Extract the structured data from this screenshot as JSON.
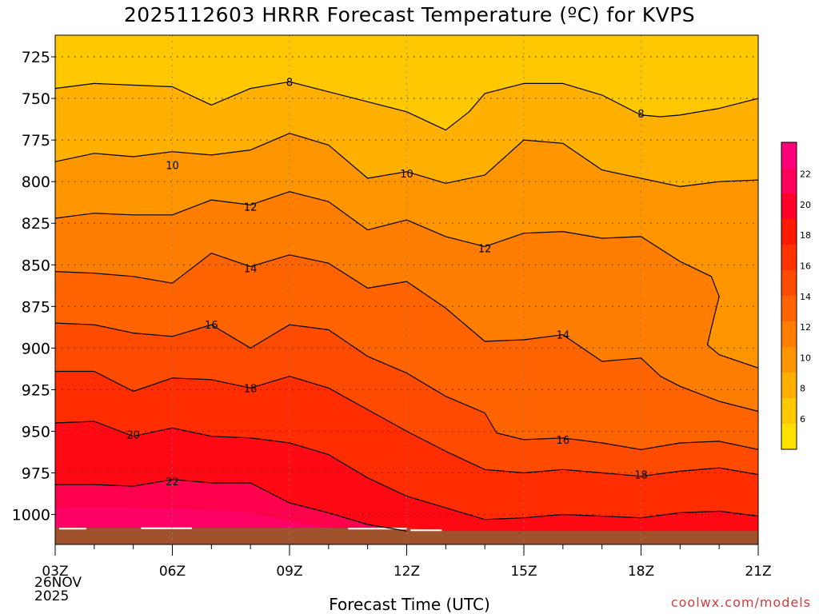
{
  "title": "2025112603 HRRR Forecast Temperature (ºC) for KVPS",
  "xlabel": "Forecast Time (UTC)",
  "credit": "coolwx.com/models",
  "date_line1": "26NOV",
  "date_line2": "2025",
  "chart_data": {
    "type": "contour",
    "variable": "Temperature (ºC)",
    "x_ticks": [
      "03Z",
      "06Z",
      "09Z",
      "12Z",
      "15Z",
      "18Z",
      "21Z"
    ],
    "x_hours": [
      3,
      6,
      9,
      12,
      15,
      18,
      21
    ],
    "y_ticks": [
      725,
      750,
      775,
      800,
      825,
      850,
      875,
      900,
      925,
      950,
      975,
      1000
    ],
    "y_range": [
      712,
      1018
    ],
    "grid": true,
    "colorbar_ticks": [
      6,
      8,
      10,
      12,
      14,
      16,
      18,
      20,
      22
    ],
    "colorbar_colors": [
      "#FFE100",
      "#FFC800",
      "#FFAF00",
      "#FF9600",
      "#FF7D00",
      "#FF6400",
      "#FF4B00",
      "#FF3200",
      "#FF1900",
      "#FF0028",
      "#FF005A",
      "#FF0078"
    ],
    "fill_levels": [
      {
        "min": 6,
        "max": 8,
        "color": "#FFC800"
      },
      {
        "min": 8,
        "max": 9,
        "color": "#FFB000"
      },
      {
        "min": 10,
        "max": 11,
        "color": "#FF9600"
      },
      {
        "min": 12,
        "max": 13,
        "color": "#FF7D00"
      },
      {
        "min": 14,
        "max": 15,
        "color": "#FF6400"
      },
      {
        "min": 16,
        "max": 17,
        "color": "#FF4B00"
      },
      {
        "min": 18,
        "max": 19,
        "color": "#FF2D00"
      },
      {
        "min": 20,
        "max": 21,
        "color": "#FF0A14"
      },
      {
        "min": 22,
        "max": 23,
        "color": "#FF004C"
      },
      {
        "min": 23,
        "max": 24,
        "color": "#FF0066"
      }
    ],
    "contours": [
      {
        "label": "8",
        "label_at": [
          9.0,
          741
        ],
        "points": [
          [
            3,
            744
          ],
          [
            4,
            741
          ],
          [
            5,
            742
          ],
          [
            6,
            743
          ],
          [
            7,
            754
          ],
          [
            8,
            744
          ],
          [
            9,
            740
          ],
          [
            10,
            746
          ],
          [
            11,
            752
          ],
          [
            12,
            758
          ],
          [
            13,
            769
          ],
          [
            13.6,
            758
          ],
          [
            14,
            747
          ],
          [
            15,
            741
          ],
          [
            16,
            741
          ],
          [
            17,
            748
          ],
          [
            18,
            760
          ],
          [
            18.5,
            761
          ],
          [
            19,
            760
          ],
          [
            20,
            756
          ],
          [
            21,
            750
          ]
        ]
      },
      {
        "label": "10",
        "label_at": [
          6.0,
          790
        ],
        "points": [
          [
            3,
            788
          ],
          [
            4,
            783
          ],
          [
            5,
            785
          ],
          [
            6,
            782
          ],
          [
            7,
            784
          ],
          [
            8,
            781
          ],
          [
            9,
            771
          ],
          [
            10,
            778
          ],
          [
            11,
            798
          ],
          [
            12,
            794
          ],
          [
            13,
            801
          ],
          [
            14,
            796
          ],
          [
            15,
            775
          ],
          [
            16,
            777
          ],
          [
            17,
            793
          ],
          [
            18,
            798
          ],
          [
            19,
            803
          ],
          [
            20,
            800
          ],
          [
            21,
            799
          ]
        ]
      },
      {
        "label": "12",
        "label_at": [
          8.0,
          835
        ],
        "points": [
          [
            3,
            822
          ],
          [
            4,
            819
          ],
          [
            5,
            820
          ],
          [
            6,
            820
          ],
          [
            7,
            811
          ],
          [
            8,
            814
          ],
          [
            9,
            806
          ],
          [
            10,
            812
          ],
          [
            11,
            829
          ],
          [
            12,
            823
          ],
          [
            13,
            833
          ],
          [
            14,
            839
          ],
          [
            15,
            831
          ],
          [
            16,
            830
          ],
          [
            17,
            834
          ],
          [
            18,
            833
          ],
          [
            19,
            848
          ],
          [
            19.8,
            857
          ],
          [
            20,
            869
          ],
          [
            19.8,
            888
          ],
          [
            19.7,
            898
          ],
          [
            20,
            904
          ],
          [
            21,
            912
          ]
        ]
      },
      {
        "label": "14",
        "label_at": [
          8.0,
          880
        ],
        "points": [
          [
            3,
            854
          ],
          [
            4,
            855
          ],
          [
            5,
            857
          ],
          [
            6,
            861
          ],
          [
            7,
            843
          ],
          [
            8,
            851
          ],
          [
            9,
            844
          ],
          [
            10,
            849
          ],
          [
            11,
            864
          ],
          [
            12,
            860
          ],
          [
            13,
            876
          ],
          [
            14,
            896
          ],
          [
            15,
            895
          ],
          [
            16,
            892
          ],
          [
            17,
            908
          ],
          [
            18,
            906
          ],
          [
            18.5,
            917
          ],
          [
            19,
            923
          ],
          [
            20,
            932
          ],
          [
            21,
            938
          ]
        ]
      },
      {
        "label": "16",
        "label_at": [
          7.0,
          922
        ],
        "points": [
          [
            3,
            885
          ],
          [
            4,
            886
          ],
          [
            5,
            891
          ],
          [
            6,
            893
          ],
          [
            7,
            886
          ],
          [
            8,
            900
          ],
          [
            9,
            886
          ],
          [
            10,
            889
          ],
          [
            11,
            905
          ],
          [
            12,
            915
          ],
          [
            13,
            929
          ],
          [
            14,
            939
          ],
          [
            14.3,
            951
          ],
          [
            15,
            955
          ],
          [
            16,
            954
          ],
          [
            17,
            957
          ],
          [
            18,
            961
          ],
          [
            19,
            957
          ],
          [
            20,
            956
          ],
          [
            21,
            961
          ]
        ]
      },
      {
        "label": "18",
        "label_at": [
          8.0,
          962
        ],
        "points": [
          [
            3,
            914
          ],
          [
            4,
            914
          ],
          [
            5,
            926
          ],
          [
            6,
            918
          ],
          [
            7,
            919
          ],
          [
            8,
            924
          ],
          [
            9,
            917
          ],
          [
            10,
            924
          ],
          [
            11,
            937
          ],
          [
            12,
            950
          ],
          [
            13,
            962
          ],
          [
            14,
            973
          ],
          [
            15,
            975
          ],
          [
            16,
            973
          ],
          [
            17,
            975
          ],
          [
            18,
            977
          ],
          [
            19,
            974
          ],
          [
            20,
            972
          ],
          [
            21,
            976
          ]
        ]
      },
      {
        "label": "20",
        "label_at": [
          5.0,
          1003
        ],
        "points": [
          [
            3,
            945
          ],
          [
            4,
            944
          ],
          [
            5,
            953
          ],
          [
            6,
            948
          ],
          [
            7,
            953
          ],
          [
            8,
            954
          ],
          [
            9,
            957
          ],
          [
            10,
            964
          ],
          [
            11,
            978
          ],
          [
            12,
            989
          ],
          [
            13,
            996
          ],
          [
            14,
            1003
          ],
          [
            15,
            1002
          ],
          [
            16,
            1000
          ],
          [
            17,
            1001
          ],
          [
            18,
            1002
          ],
          [
            19,
            999
          ],
          [
            20,
            998
          ],
          [
            21,
            1001
          ]
        ]
      },
      {
        "label": "22",
        "label_at": [
          6.0,
          1040
        ],
        "points": [
          [
            3,
            982
          ],
          [
            4,
            982
          ],
          [
            5,
            983
          ],
          [
            6,
            979
          ],
          [
            7,
            981
          ],
          [
            8,
            981
          ],
          [
            9,
            993
          ],
          [
            10,
            999
          ],
          [
            11,
            1006
          ],
          [
            12,
            1010
          ]
        ]
      }
    ],
    "surface_top": [
      [
        3,
        1008
      ],
      [
        12,
        1008
      ],
      [
        13,
        1010
      ],
      [
        21,
        1010
      ]
    ],
    "ground_color": "#A0522D"
  }
}
